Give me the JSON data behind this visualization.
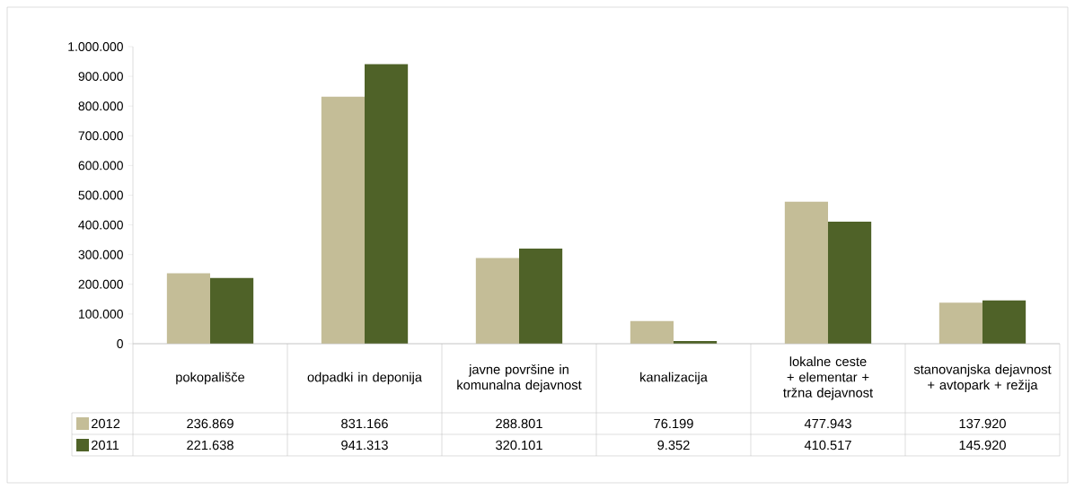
{
  "chart_data": {
    "type": "bar",
    "categories": [
      "pokopališče",
      "odpadki in deponija",
      "javne površine in komunalna dejavnost",
      "kanalizacija",
      "lokalne ceste + elementar + tržna dejavnost",
      "stanovanjska dejavnost + avtopark + režija"
    ],
    "series": [
      {
        "name": "2012",
        "color": "#c4bd97",
        "values": [
          236869,
          831166,
          288801,
          76199,
          477943,
          137920
        ],
        "value_labels": [
          "236.869",
          "831.166",
          "288.801",
          "76.199",
          "477.943",
          "137.920"
        ]
      },
      {
        "name": "2011",
        "color": "#4f6228",
        "values": [
          221638,
          941313,
          320101,
          9352,
          410517,
          145920
        ],
        "value_labels": [
          "221.638",
          "941.313",
          "320.101",
          "9.352",
          "410.517",
          "145.920"
        ]
      }
    ],
    "ylim": [
      0,
      1000000
    ],
    "yticks": [
      0,
      {
        "value": 100000,
        "label": "100.000"
      },
      {
        "value": 200000,
        "label": "200.000"
      },
      {
        "value": 300000,
        "label": "300.000"
      },
      {
        "value": 400000,
        "label": "400.000"
      },
      {
        "value": 500000,
        "label": "500.000"
      },
      {
        "value": 600000,
        "label": "600.000"
      },
      {
        "value": 700000,
        "label": "700.000"
      },
      {
        "value": 800000,
        "label": "800.000"
      },
      {
        "value": 900000,
        "label": "900.000"
      },
      {
        "value": 1000000,
        "label": "1.000.000"
      }
    ],
    "grid": false,
    "legend": "bottom left"
  }
}
